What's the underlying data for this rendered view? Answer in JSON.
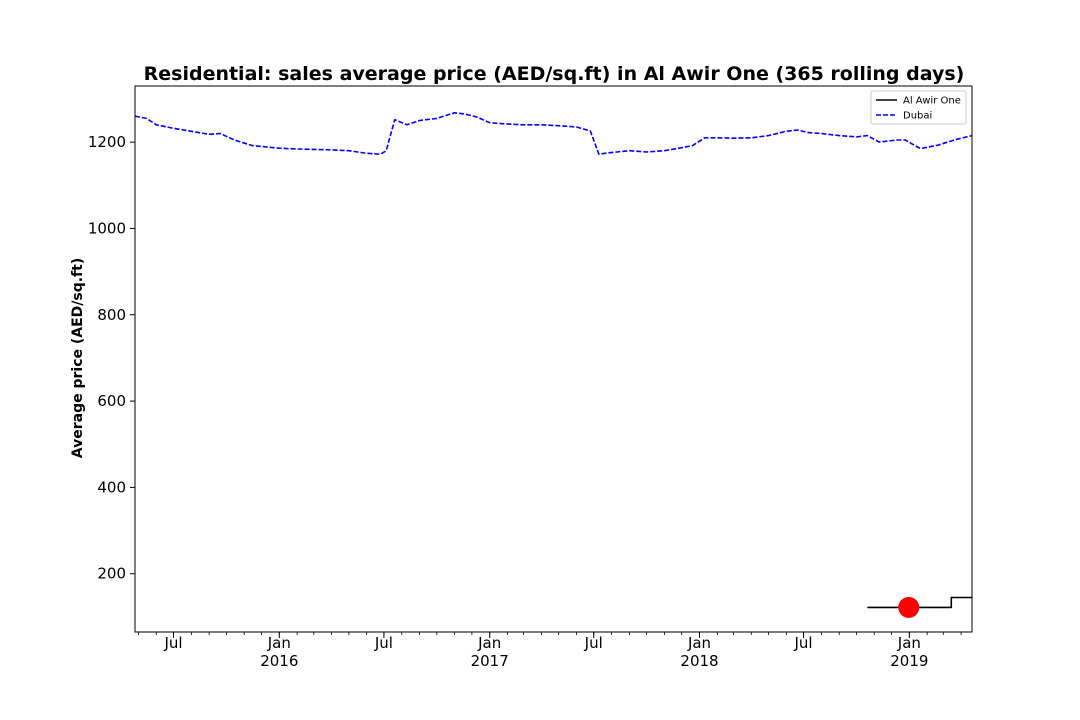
{
  "chart_data": {
    "type": "line",
    "title": "Residential: sales average price (AED/sq.ft) in Al Awir One (365 rolling days)",
    "xlabel": "",
    "ylabel": "Average price (AED/sq.ft)",
    "xlim": [
      "2015-04-25",
      "2019-04-20"
    ],
    "ylim": [
      65,
      1330
    ],
    "yticks": [
      200,
      400,
      600,
      800,
      1000,
      1200
    ],
    "xticks_major": [
      {
        "date": "2015-07-01",
        "label": "Jul",
        "year": ""
      },
      {
        "date": "2016-01-01",
        "label": "Jan",
        "year": "2016"
      },
      {
        "date": "2016-07-01",
        "label": "Jul",
        "year": ""
      },
      {
        "date": "2017-01-01",
        "label": "Jan",
        "year": "2017"
      },
      {
        "date": "2017-07-01",
        "label": "Jul",
        "year": ""
      },
      {
        "date": "2018-01-01",
        "label": "Jan",
        "year": "2018"
      },
      {
        "date": "2018-07-01",
        "label": "Jul",
        "year": ""
      },
      {
        "date": "2019-01-01",
        "label": "Jan",
        "year": "2019"
      }
    ],
    "grid": false,
    "legend_position": "top-right",
    "series": [
      {
        "name": "Al Awir One",
        "color": "#000000",
        "style": "solid",
        "x": [
          "2018-10-20",
          "2019-03-15",
          "2019-03-15",
          "2019-04-20"
        ],
        "y": [
          122,
          122,
          145,
          145
        ]
      },
      {
        "name": "Dubai",
        "color": "#0000ff",
        "style": "dashed",
        "x": [
          "2015-04-25",
          "2015-05-15",
          "2015-06-01",
          "2015-07-01",
          "2015-08-01",
          "2015-09-01",
          "2015-09-20",
          "2015-10-15",
          "2015-11-15",
          "2016-01-01",
          "2016-02-01",
          "2016-03-01",
          "2016-04-01",
          "2016-05-01",
          "2016-06-01",
          "2016-06-25",
          "2016-07-05",
          "2016-07-20",
          "2016-08-10",
          "2016-09-01",
          "2016-10-01",
          "2016-11-01",
          "2016-11-20",
          "2016-12-10",
          "2017-01-01",
          "2017-02-01",
          "2017-03-01",
          "2017-04-01",
          "2017-05-01",
          "2017-06-01",
          "2017-06-25",
          "2017-07-10",
          "2017-07-25",
          "2017-09-01",
          "2017-10-01",
          "2017-11-01",
          "2017-12-01",
          "2017-12-20",
          "2018-01-10",
          "2018-02-01",
          "2018-03-01",
          "2018-04-01",
          "2018-05-01",
          "2018-06-01",
          "2018-06-20",
          "2018-07-10",
          "2018-08-01",
          "2018-09-01",
          "2018-10-01",
          "2018-10-20",
          "2018-11-10",
          "2018-12-10",
          "2018-12-25",
          "2019-01-20",
          "2019-02-20",
          "2019-03-20",
          "2019-04-20"
        ],
        "y": [
          1260,
          1255,
          1240,
          1232,
          1225,
          1218,
          1220,
          1205,
          1192,
          1186,
          1184,
          1183,
          1182,
          1180,
          1174,
          1172,
          1180,
          1252,
          1240,
          1250,
          1255,
          1268,
          1265,
          1258,
          1245,
          1242,
          1240,
          1240,
          1238,
          1235,
          1226,
          1172,
          1175,
          1180,
          1177,
          1180,
          1187,
          1192,
          1210,
          1210,
          1209,
          1210,
          1215,
          1225,
          1228,
          1222,
          1220,
          1215,
          1212,
          1215,
          1200,
          1205,
          1205,
          1185,
          1193,
          1205,
          1215
        ]
      }
    ],
    "annotations": [
      {
        "type": "marker",
        "shape": "circle",
        "color": "#ff0000",
        "x": "2018-12-31",
        "y": 122
      }
    ]
  }
}
